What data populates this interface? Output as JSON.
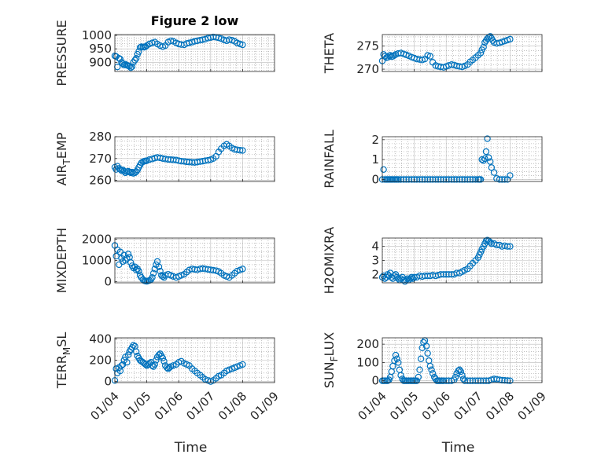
{
  "figure": {
    "title": "Figure 2 low",
    "xlabel": "Time",
    "marker_color": "#0072BD"
  },
  "chart_data": [
    {
      "type": "scatter",
      "title": "Figure 2 low",
      "ylabel": "PRESSURE",
      "xlim": [
        0,
        5
      ],
      "ylim": [
        866,
        1003
      ],
      "yticks": [
        900,
        950,
        1000
      ],
      "xticks": [
        "01/04",
        "01/05",
        "01/06",
        "01/07",
        "01/08",
        "01/09"
      ],
      "grid": "on",
      "minor_grid": "on",
      "x": [
        0.0,
        0.04,
        0.08,
        0.13,
        0.17,
        0.21,
        0.25,
        0.29,
        0.33,
        0.38,
        0.42,
        0.46,
        0.5,
        0.54,
        0.58,
        0.63,
        0.67,
        0.71,
        0.75,
        0.79,
        0.83,
        0.88,
        0.92,
        0.96,
        1.0,
        1.08,
        1.17,
        1.25,
        1.33,
        1.42,
        1.5,
        1.58,
        1.67,
        1.75,
        1.83,
        1.92,
        2.0,
        2.08,
        2.17,
        2.25,
        2.33,
        2.42,
        2.5,
        2.58,
        2.67,
        2.75,
        2.83,
        2.92,
        3.0,
        3.08,
        3.17,
        3.25,
        3.33,
        3.42,
        3.5,
        3.58,
        3.67,
        3.75,
        3.83,
        3.92,
        4.0
      ],
      "y": [
        924,
        922,
        883,
        915,
        912,
        900,
        895,
        890,
        893,
        889,
        887,
        885,
        880,
        884,
        900,
        908,
        915,
        930,
        940,
        955,
        958,
        957,
        956,
        958,
        962,
        968,
        972,
        975,
        968,
        962,
        958,
        962,
        975,
        980,
        978,
        972,
        968,
        966,
        965,
        970,
        972,
        975,
        978,
        980,
        982,
        984,
        986,
        990,
        992,
        994,
        993,
        991,
        988,
        983,
        980,
        984,
        982,
        978,
        972,
        968,
        965
      ]
    },
    {
      "type": "scatter",
      "ylabel": "THETA",
      "xlim": [
        0,
        5
      ],
      "ylim": [
        269.5,
        277.5
      ],
      "yticks": [
        270,
        275
      ],
      "xticks": [
        "01/04",
        "01/05",
        "01/06",
        "01/07",
        "01/08",
        "01/09"
      ],
      "grid": "on",
      "minor_grid": "on",
      "x": [
        0.0,
        0.04,
        0.08,
        0.13,
        0.17,
        0.21,
        0.25,
        0.29,
        0.33,
        0.38,
        0.42,
        0.5,
        0.58,
        0.67,
        0.75,
        0.83,
        0.92,
        1.0,
        1.08,
        1.17,
        1.25,
        1.33,
        1.42,
        1.5,
        1.58,
        1.67,
        1.75,
        1.83,
        1.92,
        2.0,
        2.08,
        2.17,
        2.25,
        2.33,
        2.42,
        2.5,
        2.58,
        2.67,
        2.75,
        2.83,
        2.92,
        3.0,
        3.08,
        3.12,
        3.17,
        3.21,
        3.25,
        3.29,
        3.33,
        3.38,
        3.42,
        3.46,
        3.5,
        3.58,
        3.67,
        3.75,
        3.83,
        3.92,
        4.0
      ],
      "y": [
        271.8,
        273.2,
        272.8,
        272.5,
        272.6,
        272.9,
        273.0,
        272.7,
        272.8,
        273.0,
        273.2,
        273.4,
        273.5,
        273.3,
        273.1,
        272.9,
        272.6,
        272.4,
        272.2,
        272.1,
        272.0,
        272.2,
        273.0,
        272.8,
        271.5,
        270.8,
        270.6,
        270.5,
        270.4,
        270.6,
        270.8,
        271.0,
        270.9,
        270.7,
        270.6,
        270.5,
        270.7,
        271.0,
        271.6,
        272.0,
        272.5,
        273.0,
        273.5,
        274.2,
        274.8,
        275.8,
        276.2,
        276.6,
        276.9,
        277.1,
        276.7,
        276.2,
        275.8,
        275.6,
        275.7,
        275.9,
        276.1,
        276.3,
        276.5
      ]
    },
    {
      "type": "scatter",
      "ylabel": "AIR_TEMP",
      "ylabel_parts": [
        "AIR",
        "T",
        "EMP"
      ],
      "xlim": [
        0,
        5
      ],
      "ylim": [
        259.5,
        280
      ],
      "yticks": [
        260,
        270,
        280
      ],
      "xticks": [
        "01/04",
        "01/05",
        "01/06",
        "01/07",
        "01/08",
        "01/09"
      ],
      "grid": "on",
      "minor_grid": "on",
      "x": [
        0.0,
        0.04,
        0.08,
        0.13,
        0.17,
        0.21,
        0.25,
        0.29,
        0.33,
        0.38,
        0.42,
        0.46,
        0.5,
        0.54,
        0.58,
        0.63,
        0.67,
        0.71,
        0.75,
        0.79,
        0.83,
        0.88,
        0.92,
        0.96,
        1.0,
        1.08,
        1.17,
        1.25,
        1.33,
        1.42,
        1.5,
        1.58,
        1.67,
        1.75,
        1.83,
        1.92,
        2.0,
        2.08,
        2.17,
        2.25,
        2.33,
        2.42,
        2.5,
        2.58,
        2.67,
        2.75,
        2.83,
        2.92,
        3.0,
        3.08,
        3.17,
        3.25,
        3.33,
        3.42,
        3.5,
        3.58,
        3.67,
        3.75,
        3.83,
        3.92,
        4.0
      ],
      "y": [
        266.0,
        265.0,
        266.5,
        265.5,
        265.0,
        264.5,
        264.8,
        264.2,
        263.5,
        264.0,
        264.2,
        263.8,
        263.5,
        263.8,
        263.2,
        263.5,
        264.0,
        264.8,
        266.0,
        267.0,
        268.0,
        268.5,
        268.8,
        268.9,
        269.0,
        269.5,
        269.8,
        270.2,
        270.5,
        270.3,
        270.0,
        269.8,
        269.6,
        269.5,
        269.4,
        269.3,
        269.0,
        268.8,
        268.7,
        268.5,
        268.4,
        268.3,
        268.2,
        268.4,
        268.6,
        268.8,
        269.0,
        269.2,
        269.5,
        270.0,
        271.0,
        273.0,
        274.5,
        275.8,
        276.5,
        275.8,
        274.8,
        274.2,
        274.0,
        273.8,
        273.7
      ]
    },
    {
      "type": "scatter",
      "ylabel": "RAINFALL",
      "xlim": [
        0,
        5
      ],
      "ylim": [
        -0.1,
        2.15
      ],
      "yticks": [
        0,
        1,
        2
      ],
      "xticks": [
        "01/04",
        "01/05",
        "01/06",
        "01/07",
        "01/08",
        "01/09"
      ],
      "grid": "on",
      "minor_grid": "on",
      "x": [
        0.0,
        0.04,
        0.08,
        0.13,
        0.17,
        0.21,
        0.25,
        0.29,
        0.33,
        0.38,
        0.42,
        0.46,
        0.5,
        0.58,
        0.67,
        0.75,
        0.83,
        0.92,
        1.0,
        1.08,
        1.17,
        1.25,
        1.33,
        1.42,
        1.5,
        1.58,
        1.67,
        1.75,
        1.83,
        1.92,
        2.0,
        2.08,
        2.17,
        2.25,
        2.33,
        2.42,
        2.5,
        2.58,
        2.67,
        2.75,
        2.83,
        2.92,
        3.0,
        3.04,
        3.08,
        3.12,
        3.17,
        3.21,
        3.25,
        3.29,
        3.33,
        3.38,
        3.42,
        3.5,
        3.58,
        3.67,
        3.75,
        3.83,
        3.92,
        4.0
      ],
      "y": [
        0,
        0.5,
        0,
        0,
        0,
        0,
        0,
        0,
        0,
        0,
        0,
        0,
        0,
        0,
        0,
        0,
        0,
        0,
        0,
        0,
        0,
        0,
        0,
        0,
        0,
        0,
        0,
        0,
        0,
        0,
        0,
        0,
        0,
        0,
        0,
        0,
        0,
        0,
        0,
        0,
        0,
        0,
        0,
        0,
        0,
        1.0,
        0.95,
        1.05,
        1.4,
        2.05,
        1.1,
        0.9,
        0.6,
        0.35,
        0.05,
        0,
        0,
        0,
        0,
        0.2
      ]
    },
    {
      "type": "scatter",
      "ylabel": "MIXDEPTH",
      "xlim": [
        0,
        5
      ],
      "ylim": [
        -50,
        2050
      ],
      "yticks": [
        0,
        1000,
        2000
      ],
      "xticks": [
        "01/04",
        "01/05",
        "01/06",
        "01/07",
        "01/08",
        "01/09"
      ],
      "grid": "on",
      "minor_grid": "on",
      "x": [
        0.0,
        0.04,
        0.08,
        0.13,
        0.17,
        0.21,
        0.25,
        0.29,
        0.33,
        0.38,
        0.42,
        0.46,
        0.5,
        0.54,
        0.58,
        0.63,
        0.67,
        0.71,
        0.75,
        0.79,
        0.83,
        0.88,
        0.92,
        0.96,
        1.0,
        1.04,
        1.08,
        1.13,
        1.17,
        1.21,
        1.25,
        1.29,
        1.33,
        1.38,
        1.42,
        1.46,
        1.5,
        1.54,
        1.58,
        1.67,
        1.75,
        1.83,
        1.92,
        2.0,
        2.08,
        2.17,
        2.25,
        2.33,
        2.42,
        2.5,
        2.58,
        2.67,
        2.75,
        2.83,
        2.92,
        3.0,
        3.08,
        3.17,
        3.25,
        3.33,
        3.42,
        3.5,
        3.58,
        3.67,
        3.75,
        3.83,
        3.92,
        4.0
      ],
      "y": [
        1700,
        1200,
        1500,
        800,
        1400,
        1100,
        950,
        1250,
        1000,
        1100,
        1300,
        1150,
        900,
        750,
        650,
        700,
        550,
        600,
        500,
        300,
        200,
        100,
        50,
        30,
        20,
        40,
        60,
        100,
        200,
        400,
        600,
        800,
        950,
        700,
        500,
        300,
        250,
        200,
        300,
        350,
        300,
        250,
        200,
        250,
        300,
        350,
        450,
        550,
        600,
        580,
        560,
        600,
        620,
        600,
        580,
        560,
        540,
        520,
        480,
        400,
        300,
        250,
        200,
        300,
        400,
        500,
        550,
        600
      ]
    },
    {
      "type": "scatter",
      "ylabel": "H2OMIXRA",
      "xlim": [
        0,
        5
      ],
      "ylim": [
        1.4,
        4.6
      ],
      "yticks": [
        2,
        3,
        4
      ],
      "xticks": [
        "01/04",
        "01/05",
        "01/06",
        "01/07",
        "01/08",
        "01/09"
      ],
      "grid": "on",
      "minor_grid": "on",
      "x": [
        0.0,
        0.04,
        0.08,
        0.13,
        0.17,
        0.21,
        0.25,
        0.29,
        0.33,
        0.38,
        0.42,
        0.46,
        0.5,
        0.54,
        0.58,
        0.63,
        0.67,
        0.71,
        0.75,
        0.79,
        0.83,
        0.88,
        0.92,
        0.96,
        1.0,
        1.08,
        1.17,
        1.25,
        1.33,
        1.42,
        1.5,
        1.58,
        1.67,
        1.75,
        1.83,
        1.92,
        2.0,
        2.08,
        2.17,
        2.25,
        2.33,
        2.42,
        2.5,
        2.58,
        2.67,
        2.75,
        2.83,
        2.92,
        3.0,
        3.04,
        3.08,
        3.12,
        3.17,
        3.21,
        3.25,
        3.29,
        3.33,
        3.38,
        3.42,
        3.5,
        3.58,
        3.67,
        3.75,
        3.83,
        3.92,
        4.0
      ],
      "y": [
        1.8,
        1.9,
        1.7,
        1.8,
        2.0,
        1.9,
        2.1,
        1.8,
        1.7,
        1.9,
        2.0,
        1.8,
        1.7,
        1.6,
        1.7,
        1.8,
        1.6,
        1.5,
        1.6,
        1.7,
        1.6,
        1.7,
        1.8,
        1.7,
        1.8,
        1.8,
        1.9,
        1.85,
        1.9,
        1.9,
        1.9,
        1.95,
        1.9,
        1.95,
        2.0,
        2.0,
        2.0,
        2.0,
        2.0,
        2.0,
        2.1,
        2.1,
        2.2,
        2.3,
        2.4,
        2.6,
        2.8,
        3.0,
        3.2,
        3.4,
        3.6,
        3.8,
        4.0,
        4.2,
        4.4,
        4.45,
        4.4,
        4.3,
        4.2,
        4.2,
        4.1,
        4.1,
        4.0,
        4.05,
        4.0,
        4.0
      ]
    },
    {
      "type": "scatter",
      "ylabel": "TERR_MSL",
      "ylabel_parts": [
        "TERR",
        "M",
        "SL"
      ],
      "xlim": [
        0,
        5
      ],
      "ylim": [
        -10,
        410
      ],
      "yticks": [
        0,
        200,
        400
      ],
      "xticks": [
        "01/04",
        "01/05",
        "01/06",
        "01/07",
        "01/08",
        "01/09"
      ],
      "grid": "on",
      "minor_grid": "on",
      "x": [
        0.0,
        0.04,
        0.08,
        0.13,
        0.17,
        0.21,
        0.25,
        0.29,
        0.33,
        0.38,
        0.42,
        0.46,
        0.5,
        0.54,
        0.58,
        0.63,
        0.67,
        0.71,
        0.75,
        0.79,
        0.83,
        0.88,
        0.92,
        0.96,
        1.0,
        1.04,
        1.08,
        1.13,
        1.17,
        1.21,
        1.25,
        1.29,
        1.33,
        1.38,
        1.42,
        1.46,
        1.5,
        1.54,
        1.58,
        1.63,
        1.67,
        1.71,
        1.75,
        1.83,
        1.92,
        2.0,
        2.08,
        2.17,
        2.25,
        2.33,
        2.42,
        2.5,
        2.58,
        2.67,
        2.75,
        2.83,
        2.92,
        3.0,
        3.08,
        3.17,
        3.25,
        3.33,
        3.42,
        3.5,
        3.58,
        3.67,
        3.75,
        3.83,
        3.92,
        4.0
      ],
      "y": [
        10,
        120,
        80,
        130,
        100,
        150,
        160,
        200,
        230,
        180,
        250,
        280,
        300,
        320,
        340,
        330,
        280,
        240,
        220,
        200,
        190,
        180,
        170,
        160,
        150,
        160,
        170,
        180,
        150,
        140,
        160,
        200,
        230,
        250,
        260,
        240,
        220,
        190,
        150,
        130,
        120,
        130,
        140,
        150,
        160,
        180,
        190,
        170,
        160,
        150,
        120,
        100,
        80,
        60,
        40,
        20,
        10,
        0,
        10,
        30,
        50,
        60,
        80,
        100,
        110,
        120,
        130,
        140,
        150,
        160
      ]
    },
    {
      "type": "scatter",
      "ylabel": "SUN_FLUX",
      "ylabel_parts": [
        "SUN",
        "F",
        "LUX"
      ],
      "xlim": [
        0,
        5
      ],
      "ylim": [
        -10,
        235
      ],
      "yticks": [
        0,
        100,
        200
      ],
      "xticks": [
        "01/04",
        "01/05",
        "01/06",
        "01/07",
        "01/08",
        "01/09"
      ],
      "grid": "on",
      "minor_grid": "on",
      "x": [
        0.0,
        0.04,
        0.08,
        0.13,
        0.17,
        0.21,
        0.25,
        0.29,
        0.33,
        0.38,
        0.42,
        0.46,
        0.5,
        0.54,
        0.58,
        0.63,
        0.67,
        0.71,
        0.75,
        0.79,
        0.83,
        0.88,
        0.92,
        0.96,
        1.0,
        1.04,
        1.08,
        1.13,
        1.17,
        1.21,
        1.25,
        1.29,
        1.33,
        1.38,
        1.42,
        1.46,
        1.5,
        1.54,
        1.58,
        1.63,
        1.67,
        1.71,
        1.75,
        1.79,
        1.83,
        1.88,
        1.92,
        2.0,
        2.08,
        2.17,
        2.25,
        2.29,
        2.33,
        2.38,
        2.42,
        2.46,
        2.5,
        2.54,
        2.58,
        2.67,
        2.75,
        2.83,
        2.92,
        3.0,
        3.08,
        3.17,
        3.25,
        3.33,
        3.42,
        3.5,
        3.58,
        3.67,
        3.75,
        3.83,
        3.92,
        4.0
      ],
      "y": [
        0,
        0,
        0,
        0,
        0,
        5,
        20,
        50,
        80,
        110,
        140,
        120,
        100,
        60,
        30,
        10,
        0,
        0,
        0,
        0,
        0,
        0,
        0,
        0,
        0,
        0,
        0,
        20,
        60,
        120,
        180,
        210,
        220,
        190,
        150,
        110,
        80,
        60,
        40,
        20,
        10,
        0,
        0,
        0,
        0,
        0,
        0,
        0,
        0,
        0,
        5,
        20,
        40,
        55,
        60,
        50,
        30,
        10,
        0,
        0,
        0,
        0,
        0,
        0,
        0,
        0,
        0,
        0,
        5,
        10,
        8,
        5,
        3,
        2,
        1,
        0
      ]
    }
  ]
}
